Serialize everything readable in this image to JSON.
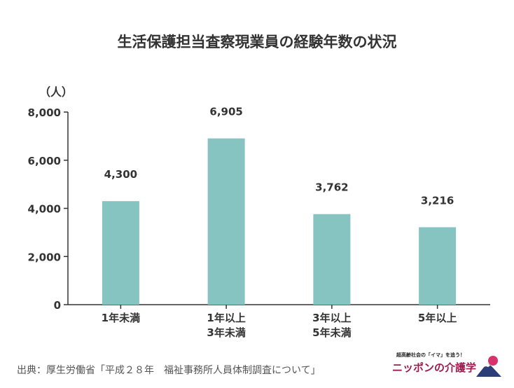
{
  "title": "生活保護担当査察現業員の経験年数の状況",
  "source": "出典：厚生労働省「平成２８年　福祉事務所人員体制調査について」",
  "brand": {
    "tagline": "超高齢社会の「イマ」を追う！",
    "name": "ニッポンの介護学",
    "icon": "mount-fuji-sun-logo"
  },
  "colors": {
    "bar": "#86c4c2",
    "axis": "#333333",
    "text": "#333333"
  },
  "chart_data": {
    "type": "bar",
    "title": "生活保護担当査察現業員の経験年数の状況",
    "ylabel": "（人）",
    "ylim": [
      0,
      8000
    ],
    "yticks": [
      0,
      2000,
      4000,
      6000,
      8000
    ],
    "ytick_labels": [
      "0",
      "2,000",
      "4,000",
      "6,000",
      "8,000"
    ],
    "categories": [
      [
        "1年未満"
      ],
      [
        "1年以上",
        "3年未満"
      ],
      [
        "3年以上",
        "5年未満"
      ],
      [
        "5年以上"
      ]
    ],
    "values": [
      4300,
      6905,
      3762,
      3216
    ],
    "value_labels": [
      "4,300",
      "6,905",
      "3,762",
      "3,216"
    ],
    "grid": false
  }
}
